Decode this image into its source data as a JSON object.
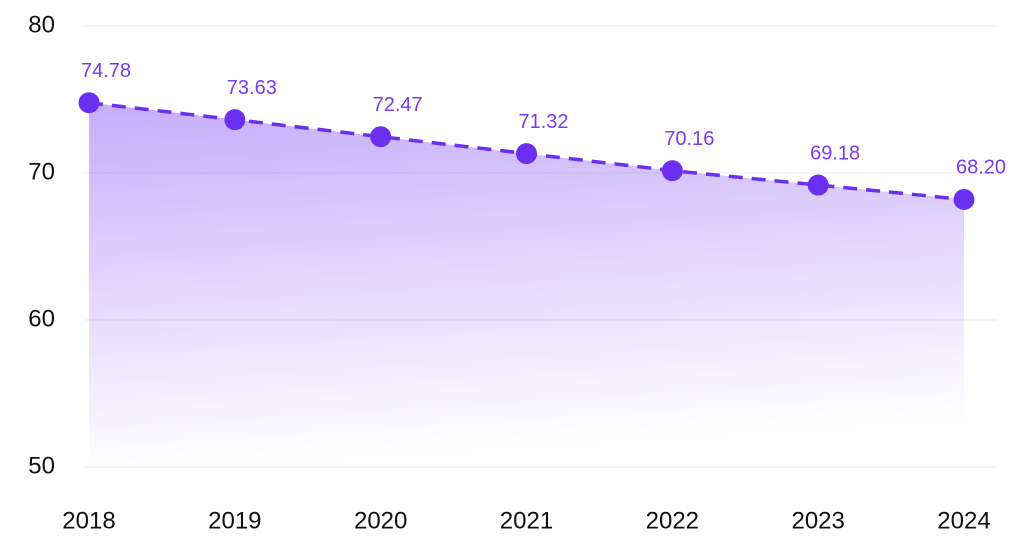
{
  "chart_data": {
    "type": "line",
    "categories": [
      "2018",
      "2019",
      "2020",
      "2021",
      "2022",
      "2023",
      "2024"
    ],
    "values": [
      74.78,
      73.63,
      72.47,
      71.32,
      70.16,
      69.18,
      68.2
    ],
    "value_labels": [
      "74.78",
      "73.63",
      "72.47",
      "71.32",
      "70.16",
      "69.18",
      "68.20"
    ],
    "color": "#6a2ff0",
    "ylim": [
      50,
      80
    ],
    "yticks": [
      50,
      60,
      70,
      80
    ],
    "grid": true
  }
}
